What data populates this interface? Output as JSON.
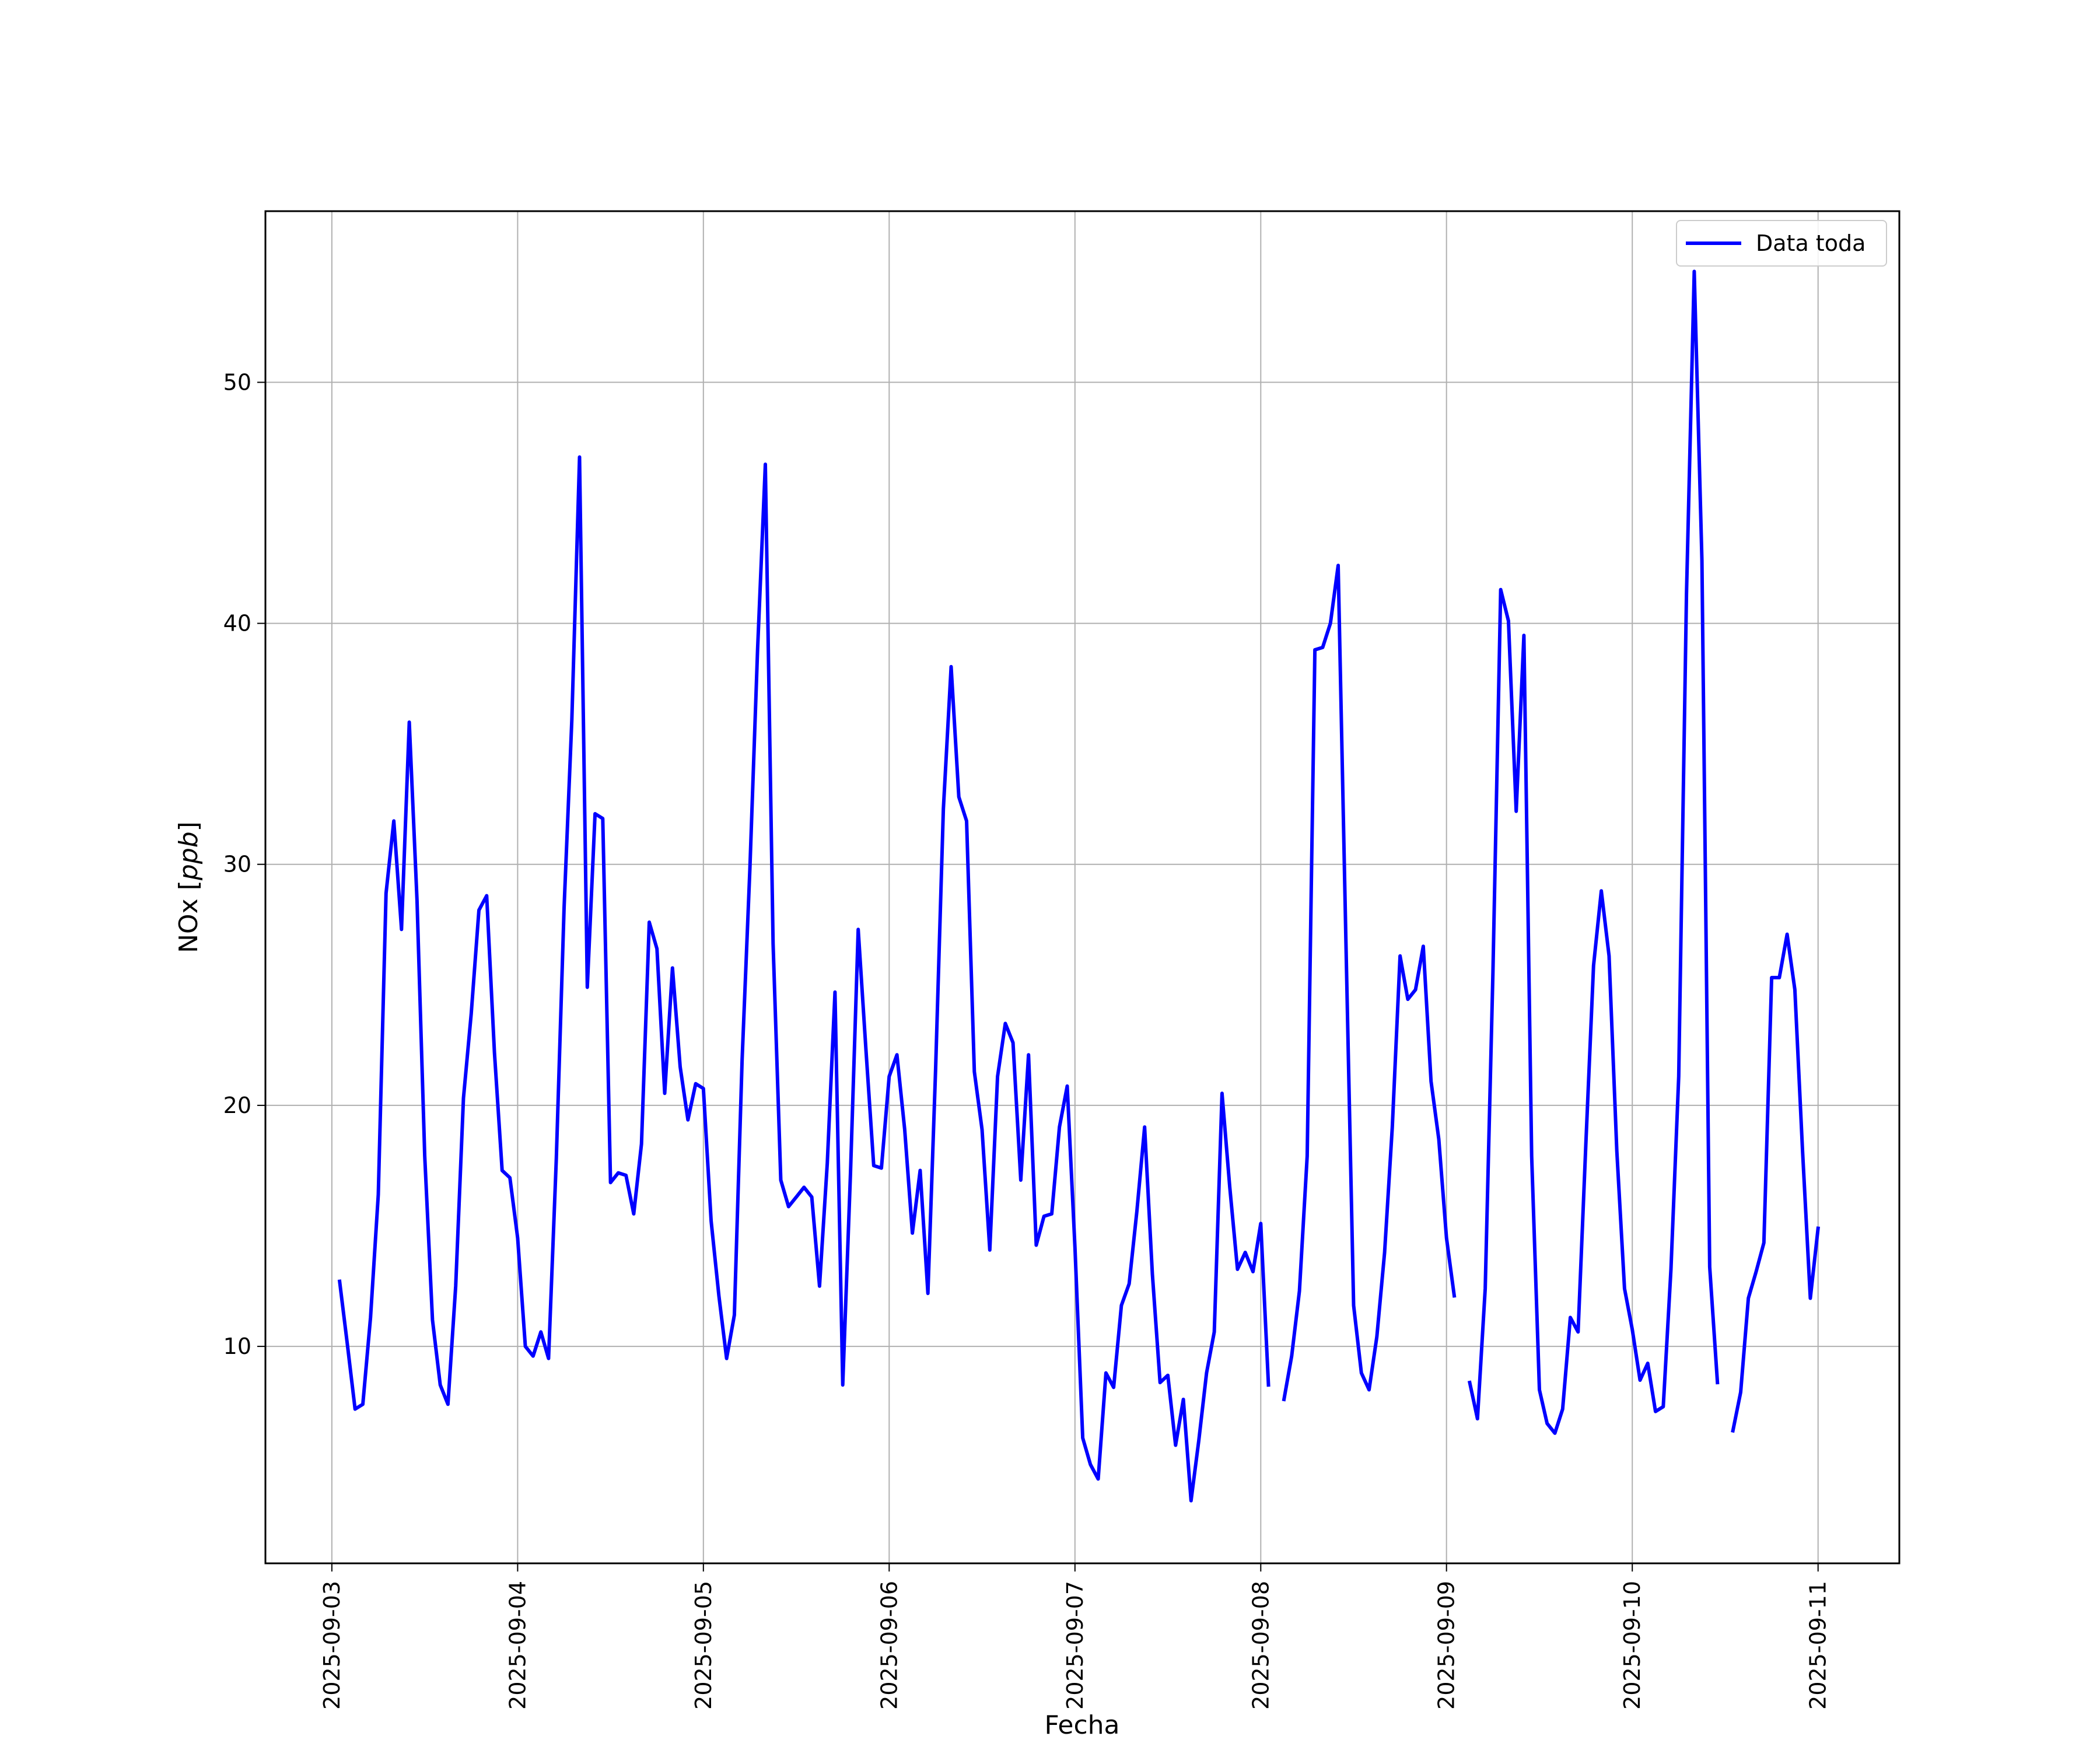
{
  "chart_data": {
    "type": "line",
    "xlabel": "Fecha",
    "ylabel": "NOx [ppb]",
    "ylabel_main": "NOx [",
    "ylabel_unit": "ppb",
    "ylabel_close": "]",
    "x_ticks": [
      "2025-09-03",
      "2025-09-04",
      "2025-09-05",
      "2025-09-06",
      "2025-09-07",
      "2025-09-08",
      "2025-09-09",
      "2025-09-10",
      "2025-09-11"
    ],
    "y_ticks": [
      10,
      20,
      30,
      40,
      50
    ],
    "xlim": [
      "2025-09-02T15:25",
      "2025-09-11T10:30"
    ],
    "ylim": [
      1.0,
      57.1
    ],
    "grid": true,
    "legend_position": "top-right",
    "line_color": "#0000ff",
    "series": [
      {
        "name": "Data toda",
        "segments": [
          [
            [
              "2025-09-03T01:00",
              12.7
            ],
            [
              "2025-09-03T02:00",
              10.1
            ],
            [
              "2025-09-03T03:00",
              7.4
            ],
            [
              "2025-09-03T04:00",
              7.6
            ],
            [
              "2025-09-03T05:00",
              11.2
            ],
            [
              "2025-09-03T06:00",
              16.3
            ],
            [
              "2025-09-03T07:00",
              28.8
            ],
            [
              "2025-09-03T08:00",
              31.8
            ],
            [
              "2025-09-03T09:00",
              27.3
            ],
            [
              "2025-09-03T10:00",
              35.9
            ],
            [
              "2025-09-03T11:00",
              28.5
            ],
            [
              "2025-09-03T12:00",
              17.9
            ],
            [
              "2025-09-03T13:00",
              11.1
            ],
            [
              "2025-09-03T14:00",
              8.4
            ],
            [
              "2025-09-03T15:00",
              7.6
            ],
            [
              "2025-09-03T16:00",
              12.5
            ],
            [
              "2025-09-03T17:00",
              20.3
            ],
            [
              "2025-09-03T18:00",
              23.8
            ],
            [
              "2025-09-03T19:00",
              28.1
            ],
            [
              "2025-09-03T20:00",
              28.7
            ],
            [
              "2025-09-03T21:00",
              22.2
            ],
            [
              "2025-09-03T22:00",
              17.3
            ],
            [
              "2025-09-03T23:00",
              17.0
            ],
            [
              "2025-09-04T00:00",
              14.5
            ],
            [
              "2025-09-04T01:00",
              10.0
            ],
            [
              "2025-09-04T02:00",
              9.6
            ],
            [
              "2025-09-04T03:00",
              10.6
            ],
            [
              "2025-09-04T04:00",
              9.5
            ],
            [
              "2025-09-04T05:00",
              17.8
            ],
            [
              "2025-09-04T06:00",
              28.2
            ],
            [
              "2025-09-04T07:00",
              36.0
            ],
            [
              "2025-09-04T08:00",
              46.9
            ],
            [
              "2025-09-04T09:00",
              24.9
            ],
            [
              "2025-09-04T10:00",
              32.1
            ],
            [
              "2025-09-04T11:00",
              31.9
            ],
            [
              "2025-09-04T12:00",
              16.8
            ],
            [
              "2025-09-04T13:00",
              17.2
            ],
            [
              "2025-09-04T14:00",
              17.1
            ],
            [
              "2025-09-04T15:00",
              15.5
            ],
            [
              "2025-09-04T16:00",
              18.4
            ],
            [
              "2025-09-04T17:00",
              27.6
            ],
            [
              "2025-09-04T18:00",
              26.5
            ],
            [
              "2025-09-04T19:00",
              20.5
            ],
            [
              "2025-09-04T20:00",
              25.7
            ],
            [
              "2025-09-04T21:00",
              21.6
            ],
            [
              "2025-09-04T22:00",
              19.4
            ],
            [
              "2025-09-04T23:00",
              20.9
            ],
            [
              "2025-09-05T00:00",
              20.7
            ],
            [
              "2025-09-05T01:00",
              15.2
            ],
            [
              "2025-09-05T02:00",
              12.1
            ],
            [
              "2025-09-05T03:00",
              9.5
            ],
            [
              "2025-09-05T04:00",
              11.3
            ],
            [
              "2025-09-05T05:00",
              21.9
            ],
            [
              "2025-09-05T06:00",
              29.8
            ],
            [
              "2025-09-05T07:00",
              38.9
            ],
            [
              "2025-09-05T08:00",
              46.6
            ],
            [
              "2025-09-05T09:00",
              26.7
            ],
            [
              "2025-09-05T10:00",
              16.9
            ],
            [
              "2025-09-05T11:00",
              15.8
            ],
            [
              "2025-09-05T12:00",
              16.2
            ],
            [
              "2025-09-05T13:00",
              16.6
            ],
            [
              "2025-09-05T14:00",
              16.2
            ],
            [
              "2025-09-05T15:00",
              12.5
            ],
            [
              "2025-09-05T16:00",
              17.6
            ],
            [
              "2025-09-05T17:00",
              24.7
            ],
            [
              "2025-09-05T18:00",
              8.4
            ],
            [
              "2025-09-05T19:00",
              17.2
            ],
            [
              "2025-09-05T20:00",
              27.3
            ],
            [
              "2025-09-05T21:00",
              22.3
            ],
            [
              "2025-09-05T22:00",
              17.5
            ],
            [
              "2025-09-05T23:00",
              17.4
            ],
            [
              "2025-09-06T00:00",
              21.2
            ],
            [
              "2025-09-06T01:00",
              22.1
            ],
            [
              "2025-09-06T02:00",
              19.0
            ],
            [
              "2025-09-06T03:00",
              14.7
            ],
            [
              "2025-09-06T04:00",
              17.3
            ],
            [
              "2025-09-06T05:00",
              12.2
            ],
            [
              "2025-09-06T06:00",
              21.5
            ],
            [
              "2025-09-06T07:00",
              32.3
            ],
            [
              "2025-09-06T08:00",
              38.2
            ],
            [
              "2025-09-06T09:00",
              32.8
            ],
            [
              "2025-09-06T10:00",
              31.8
            ],
            [
              "2025-09-06T11:00",
              21.4
            ],
            [
              "2025-09-06T12:00",
              19.0
            ],
            [
              "2025-09-06T13:00",
              14.0
            ],
            [
              "2025-09-06T14:00",
              21.2
            ],
            [
              "2025-09-06T15:00",
              23.4
            ],
            [
              "2025-09-06T16:00",
              22.6
            ],
            [
              "2025-09-06T17:00",
              16.9
            ],
            [
              "2025-09-06T18:00",
              22.1
            ],
            [
              "2025-09-06T19:00",
              14.2
            ],
            [
              "2025-09-06T20:00",
              15.4
            ],
            [
              "2025-09-06T21:00",
              15.5
            ],
            [
              "2025-09-06T22:00",
              19.1
            ],
            [
              "2025-09-06T23:00",
              20.8
            ],
            [
              "2025-09-07T00:00",
              14.1
            ],
            [
              "2025-09-07T01:00",
              6.2
            ],
            [
              "2025-09-07T02:00",
              5.1
            ],
            [
              "2025-09-07T03:00",
              4.5
            ],
            [
              "2025-09-07T04:00",
              8.9
            ],
            [
              "2025-09-07T05:00",
              8.3
            ],
            [
              "2025-09-07T06:00",
              11.7
            ],
            [
              "2025-09-07T07:00",
              12.6
            ],
            [
              "2025-09-07T08:00",
              15.6
            ],
            [
              "2025-09-07T09:00",
              19.1
            ],
            [
              "2025-09-07T10:00",
              13.0
            ],
            [
              "2025-09-07T11:00",
              8.5
            ],
            [
              "2025-09-07T12:00",
              8.8
            ],
            [
              "2025-09-07T13:00",
              5.9
            ],
            [
              "2025-09-07T14:00",
              7.8
            ],
            [
              "2025-09-07T15:00",
              3.6
            ],
            [
              "2025-09-07T16:00",
              6.1
            ],
            [
              "2025-09-07T17:00",
              8.9
            ],
            [
              "2025-09-07T18:00",
              10.6
            ],
            [
              "2025-09-07T19:00",
              20.5
            ],
            [
              "2025-09-07T20:00",
              16.6
            ],
            [
              "2025-09-07T21:00",
              13.2
            ],
            [
              "2025-09-07T22:00",
              13.9
            ],
            [
              "2025-09-07T23:00",
              13.1
            ],
            [
              "2025-09-08T00:00",
              15.1
            ],
            [
              "2025-09-08T01:00",
              8.4
            ]
          ],
          [
            [
              "2025-09-08T03:00",
              7.8
            ],
            [
              "2025-09-08T04:00",
              9.6
            ],
            [
              "2025-09-08T05:00",
              12.3
            ],
            [
              "2025-09-08T06:00",
              17.9
            ],
            [
              "2025-09-08T07:00",
              38.9
            ],
            [
              "2025-09-08T08:00",
              39.0
            ],
            [
              "2025-09-08T09:00",
              40.0
            ],
            [
              "2025-09-08T10:00",
              42.4
            ],
            [
              "2025-09-08T11:00",
              26.9
            ],
            [
              "2025-09-08T12:00",
              11.7
            ],
            [
              "2025-09-08T13:00",
              8.9
            ],
            [
              "2025-09-08T14:00",
              8.2
            ],
            [
              "2025-09-08T15:00",
              10.4
            ],
            [
              "2025-09-08T16:00",
              13.9
            ],
            [
              "2025-09-08T17:00",
              19.1
            ],
            [
              "2025-09-08T18:00",
              26.2
            ],
            [
              "2025-09-08T19:00",
              24.4
            ],
            [
              "2025-09-08T20:00",
              24.8
            ],
            [
              "2025-09-08T21:00",
              26.6
            ],
            [
              "2025-09-08T22:00",
              21.0
            ],
            [
              "2025-09-08T23:00",
              18.6
            ],
            [
              "2025-09-09T00:00",
              14.5
            ],
            [
              "2025-09-09T01:00",
              12.1
            ]
          ],
          [
            [
              "2025-09-09T03:00",
              8.5
            ],
            [
              "2025-09-09T04:00",
              7.0
            ],
            [
              "2025-09-09T05:00",
              12.4
            ],
            [
              "2025-09-09T06:00",
              25.5
            ],
            [
              "2025-09-09T07:00",
              41.4
            ],
            [
              "2025-09-09T08:00",
              40.1
            ],
            [
              "2025-09-09T09:00",
              32.2
            ],
            [
              "2025-09-09T10:00",
              39.5
            ],
            [
              "2025-09-09T11:00",
              17.9
            ],
            [
              "2025-09-09T12:00",
              8.2
            ],
            [
              "2025-09-09T13:00",
              6.8
            ],
            [
              "2025-09-09T14:00",
              6.4
            ],
            [
              "2025-09-09T15:00",
              7.4
            ],
            [
              "2025-09-09T16:00",
              11.2
            ],
            [
              "2025-09-09T17:00",
              10.6
            ],
            [
              "2025-09-09T18:00",
              18.4
            ],
            [
              "2025-09-09T19:00",
              25.8
            ],
            [
              "2025-09-09T20:00",
              28.9
            ],
            [
              "2025-09-09T21:00",
              26.2
            ],
            [
              "2025-09-09T22:00",
              18.1
            ],
            [
              "2025-09-09T23:00",
              12.4
            ],
            [
              "2025-09-10T00:00",
              10.7
            ],
            [
              "2025-09-10T01:00",
              8.6
            ],
            [
              "2025-09-10T02:00",
              9.3
            ],
            [
              "2025-09-10T03:00",
              7.3
            ],
            [
              "2025-09-10T04:00",
              7.5
            ],
            [
              "2025-09-10T05:00",
              13.2
            ],
            [
              "2025-09-10T06:00",
              21.2
            ],
            [
              "2025-09-10T07:00",
              41.2
            ],
            [
              "2025-09-10T08:00",
              54.6
            ],
            [
              "2025-09-10T09:00",
              42.6
            ],
            [
              "2025-09-10T10:00",
              13.3
            ],
            [
              "2025-09-10T11:00",
              8.5
            ]
          ],
          [
            [
              "2025-09-10T13:00",
              6.5
            ],
            [
              "2025-09-10T14:00",
              8.1
            ],
            [
              "2025-09-10T15:00",
              12.0
            ],
            [
              "2025-09-10T16:00",
              13.1
            ],
            [
              "2025-09-10T17:00",
              14.3
            ],
            [
              "2025-09-10T18:00",
              25.3
            ],
            [
              "2025-09-10T19:00",
              25.3
            ],
            [
              "2025-09-10T20:00",
              27.1
            ],
            [
              "2025-09-10T21:00",
              24.8
            ],
            [
              "2025-09-10T22:00",
              18.1
            ],
            [
              "2025-09-10T23:00",
              12.0
            ],
            [
              "2025-09-11T00:00",
              14.9
            ]
          ]
        ]
      }
    ]
  }
}
